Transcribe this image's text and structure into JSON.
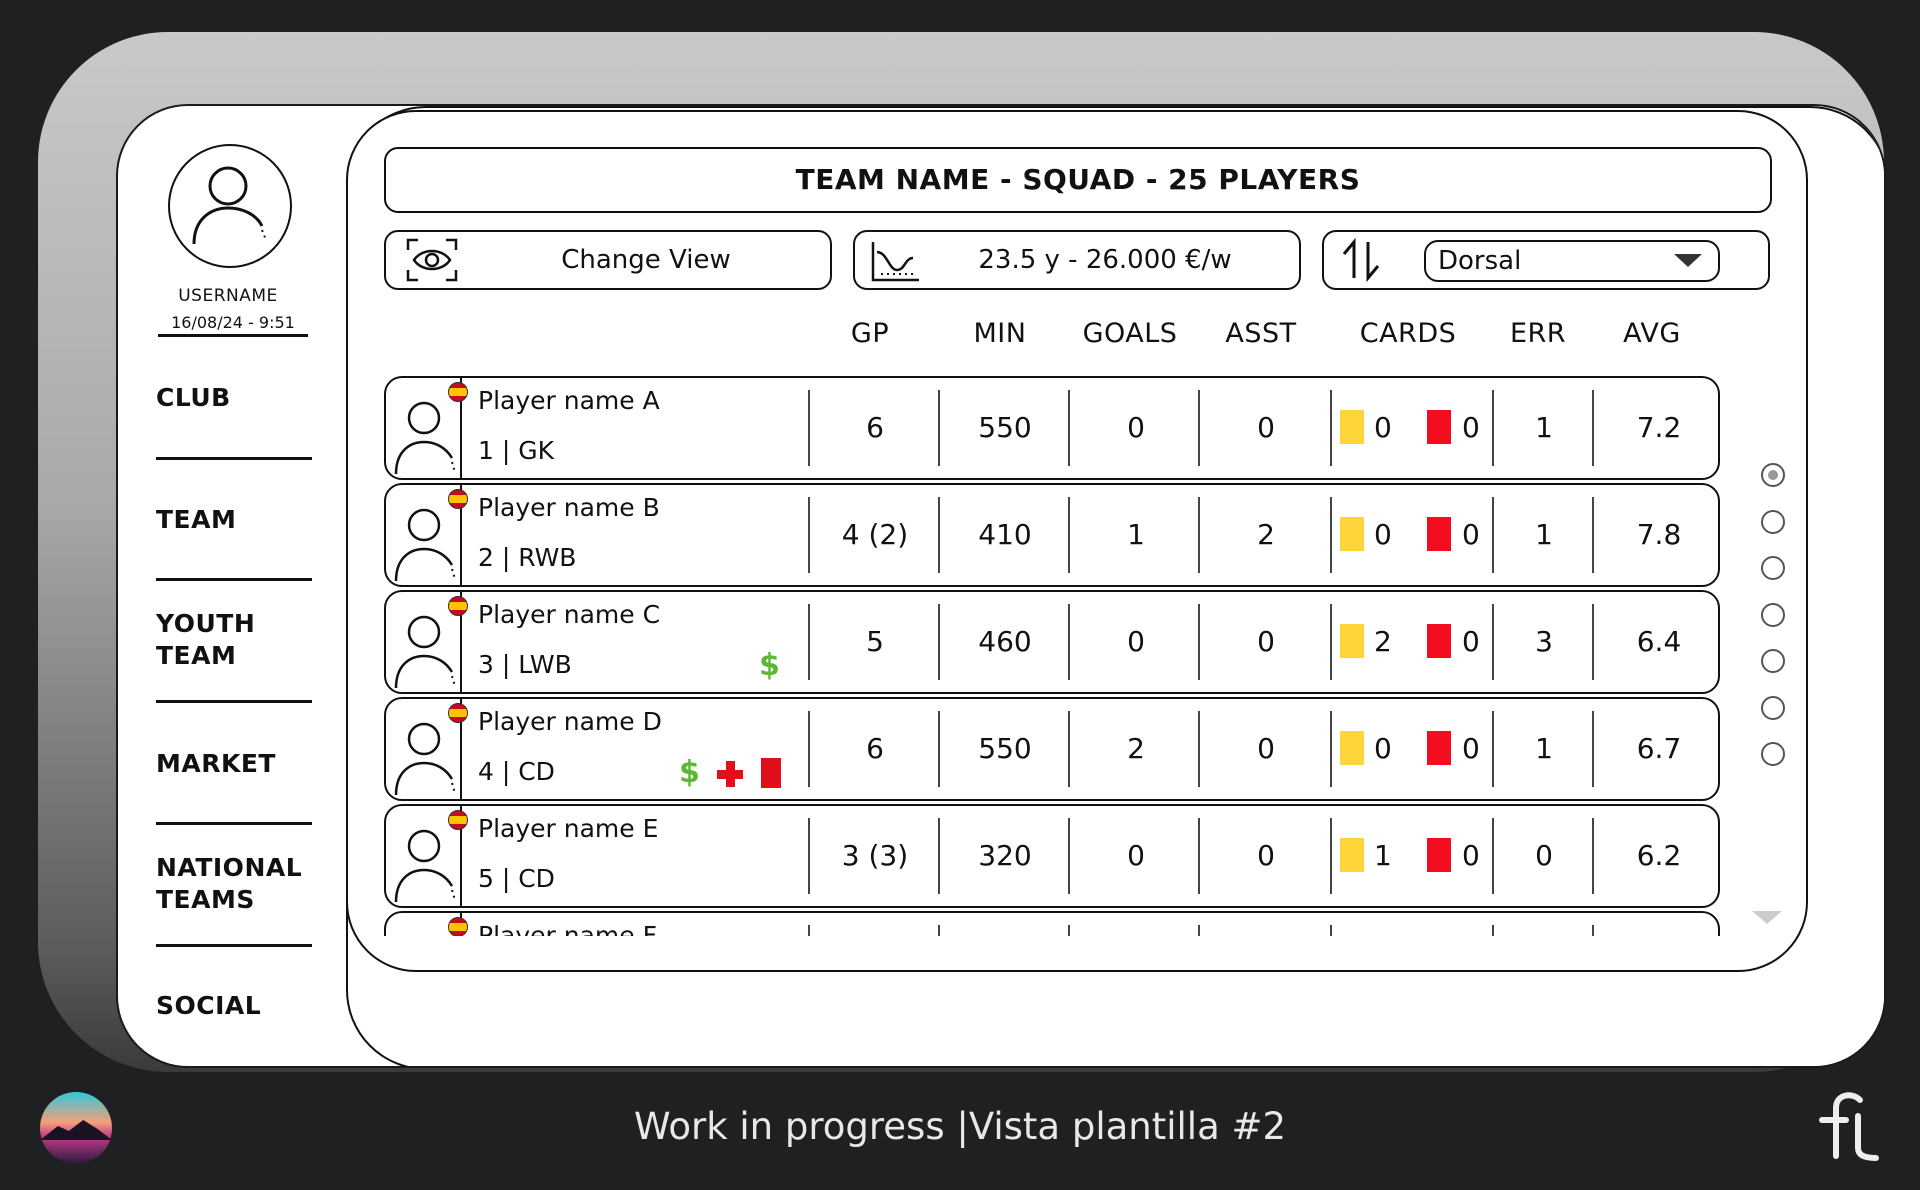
{
  "user": {
    "username": "USERNAME",
    "datetime": "16/08/24 - 9:51"
  },
  "nav": [
    {
      "label": "CLUB"
    },
    {
      "label": "TEAM"
    },
    {
      "label": "YOUTH TEAM"
    },
    {
      "label": "MARKET"
    },
    {
      "label": "NATIONAL TEAMS"
    },
    {
      "label": "SOCIAL"
    }
  ],
  "title": "TEAM NAME - SQUAD - 25 PLAYERS",
  "controls": {
    "change_view": "Change View",
    "stats_summary": "23.5 y - 26.000 €/w",
    "sort_value": "Dorsal"
  },
  "columns": [
    "GP",
    "MIN",
    "GOALS",
    "ASST",
    "CARDS",
    "ERR",
    "AVG"
  ],
  "players": [
    {
      "name": "Player name A",
      "position": "1 | GK",
      "gp": "6",
      "min": "550",
      "goals": "0",
      "asst": "0",
      "yellow": "0",
      "red": "0",
      "err": "1",
      "avg": "7.2",
      "status": []
    },
    {
      "name": "Player name B",
      "position": "2 | RWB",
      "gp": "4 (2)",
      "min": "410",
      "goals": "1",
      "asst": "2",
      "yellow": "0",
      "red": "0",
      "err": "1",
      "avg": "7.8",
      "status": []
    },
    {
      "name": "Player name C",
      "position": "3 | LWB",
      "gp": "5",
      "min": "460",
      "goals": "0",
      "asst": "0",
      "yellow": "2",
      "red": "0",
      "err": "3",
      "avg": "6.4",
      "status": [
        "dollar-icon"
      ]
    },
    {
      "name": "Player name D",
      "position": "4 | CD",
      "gp": "6",
      "min": "550",
      "goals": "2",
      "asst": "0",
      "yellow": "0",
      "red": "0",
      "err": "1",
      "avg": "6.7",
      "status": [
        "dollar-icon",
        "injury-cross-icon",
        "red-card-icon"
      ]
    },
    {
      "name": "Player name E",
      "position": "5 | CD",
      "gp": "3 (3)",
      "min": "320",
      "goals": "0",
      "asst": "0",
      "yellow": "1",
      "red": "0",
      "err": "0",
      "avg": "6.2",
      "status": []
    },
    {
      "name": "Player name F",
      "position": "",
      "gp": "",
      "min": "",
      "goals": "",
      "asst": "",
      "yellow": "",
      "red": "",
      "err": "",
      "avg": "",
      "status": []
    }
  ],
  "pagination": {
    "dots": 7,
    "active": 1
  },
  "footer": {
    "text": "Work in progress  |Vista plantilla #2"
  },
  "colors": {
    "yellow_card": "#fdd439",
    "red_card": "#f30d1e",
    "money": "#5cb832",
    "injury": "#e0101a",
    "flag": "spain-flag-icon"
  }
}
